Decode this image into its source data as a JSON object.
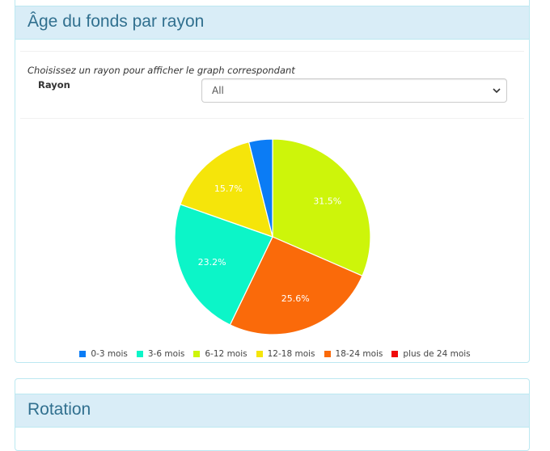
{
  "panel_age": {
    "title": "Âge du fonds par rayon",
    "hint": "Choisissez un rayon pour afficher le graph correspondant",
    "field_label": "Rayon",
    "select_value": "All"
  },
  "panel_rotation": {
    "title": "Rotation"
  },
  "colors": {
    "heading_bg": "#d9edf7",
    "heading_text": "#31708f"
  },
  "chart_data": {
    "type": "pie",
    "title": "",
    "categories": [
      "0-3 mois",
      "3-6 mois",
      "6-12 mois",
      "12-18 mois",
      "18-24 mois",
      "plus de 24 mois"
    ],
    "values": [
      3.9,
      23.2,
      31.5,
      15.7,
      25.6,
      0.0
    ],
    "data_labels": [
      "",
      "23.2%",
      "31.5%",
      "15.7%",
      "25.6%",
      ""
    ],
    "colors": [
      "#0b7cf5",
      "#0cf5c8",
      "#cdf50a",
      "#f5e50a",
      "#fa6a0a",
      "#f00a0a"
    ],
    "slice_order": [
      2,
      4,
      1,
      3,
      0
    ],
    "legend_position": "bottom"
  }
}
